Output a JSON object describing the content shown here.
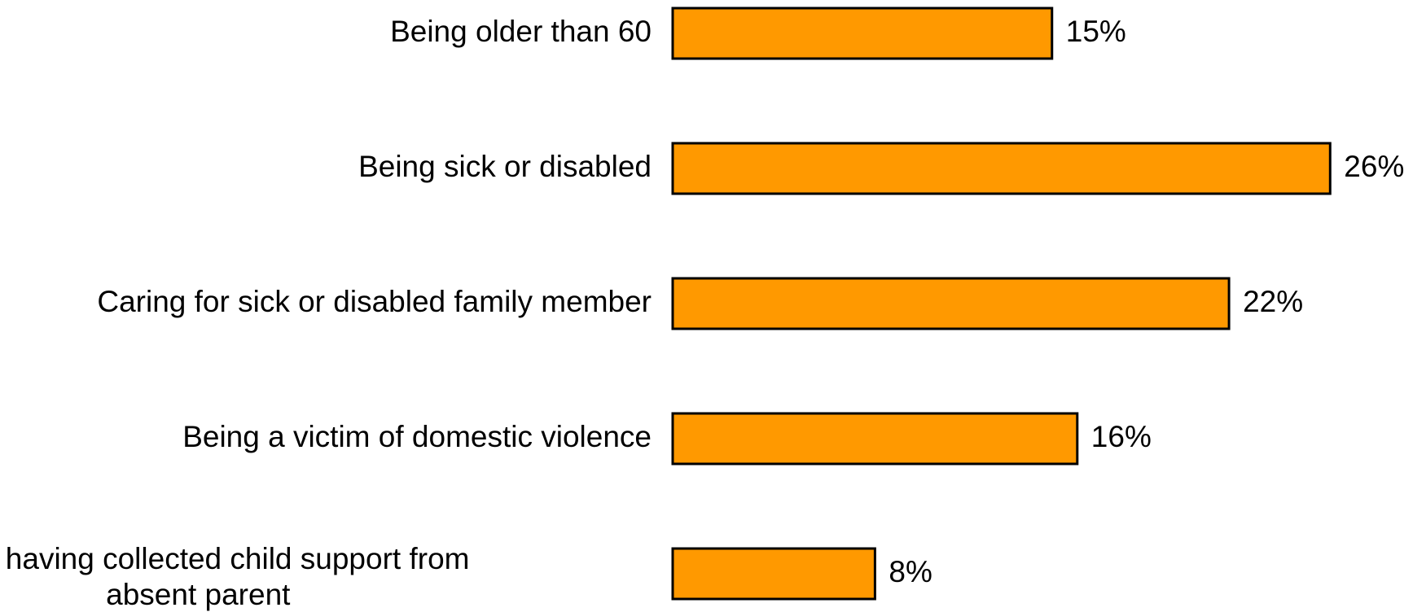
{
  "chart_data": {
    "type": "bar",
    "orientation": "horizontal",
    "categories": [
      [
        "Being older than 60"
      ],
      [
        "Being sick or disabled"
      ],
      [
        "Caring for sick or disabled family member"
      ],
      [
        "Being a victim of domestic violence"
      ],
      [
        "State having collected child support from",
        "absent parent"
      ]
    ],
    "values": [
      15,
      26,
      22,
      16,
      8
    ],
    "value_labels": [
      "15%",
      "26%",
      "22%",
      "16%",
      "8%"
    ],
    "unit": "%",
    "bar_color": "#FF9900",
    "bar_border_color": "#000000",
    "title": "",
    "xlabel": "",
    "ylabel": "",
    "axes_visible": false,
    "grid": false,
    "legend": "none"
  }
}
